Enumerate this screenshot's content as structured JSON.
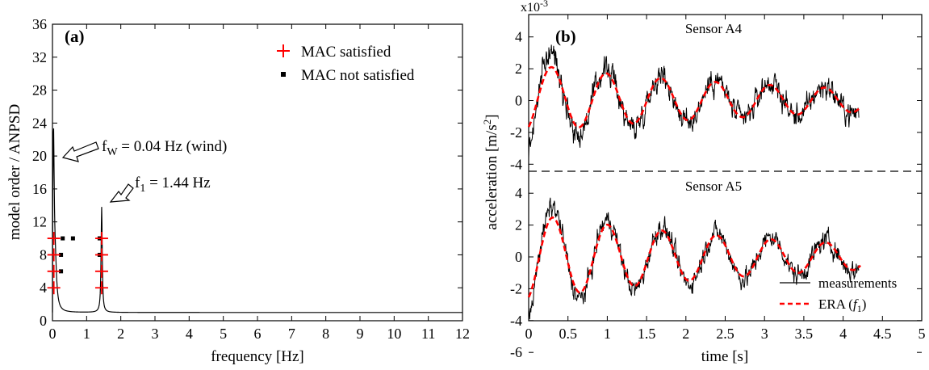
{
  "colors": {
    "axis": "#000000",
    "marker_red": "#ff0000",
    "era_red": "#ff0000",
    "trace": "#000000"
  },
  "chart_data": [
    {
      "type": "scatter",
      "panel_label": "(a)",
      "xlabel": "frequency [Hz]",
      "ylabel": "model order / ANPSD",
      "xlim": [
        0,
        12
      ],
      "ylim": [
        0,
        36
      ],
      "xticks": [
        0,
        1,
        2,
        3,
        4,
        5,
        6,
        7,
        8,
        9,
        10,
        11,
        12
      ],
      "yticks": [
        0,
        4,
        8,
        12,
        16,
        20,
        24,
        28,
        32,
        36
      ],
      "grid": false,
      "legend_position": "top-right",
      "legend": [
        {
          "label": "MAC satisfied",
          "marker": "plus",
          "color": "#ff0000"
        },
        {
          "label": "MAC not satisfied",
          "marker": "square",
          "color": "#000000"
        }
      ],
      "annotations": [
        {
          "text_main": "f",
          "text_sub": "W",
          "text_rest": " = 0.04 Hz  (wind)",
          "x": 0.04,
          "y": 20
        },
        {
          "text_main": "f",
          "text_sub": "1",
          "text_rest": " = 1.44 Hz",
          "x": 1.44,
          "y": 14
        }
      ],
      "series": [
        {
          "name": "MAC satisfied",
          "points": [
            [
              0.04,
              4
            ],
            [
              0.04,
              6
            ],
            [
              0.04,
              8
            ],
            [
              0.04,
              10
            ],
            [
              1.44,
              4
            ],
            [
              1.44,
              6
            ],
            [
              1.44,
              8
            ],
            [
              1.44,
              10
            ]
          ]
        },
        {
          "name": "MAC not satisfied",
          "points": [
            [
              0.25,
              6
            ],
            [
              0.25,
              8
            ],
            [
              0.3,
              10
            ],
            [
              0.6,
              10
            ],
            [
              1.38,
              8
            ],
            [
              1.38,
              10
            ]
          ]
        },
        {
          "name": "ANPSD",
          "line": true,
          "baseline": 1.0,
          "peaks": [
            {
              "f": 0.03,
              "amp": 21.2,
              "width": 0.025
            },
            {
              "f": 0.08,
              "amp": 6.0,
              "width": 0.05
            },
            {
              "f": 1.44,
              "amp": 13.8,
              "width": 0.02
            }
          ]
        }
      ]
    },
    {
      "type": "line",
      "panel_label": "(b)",
      "xlabel": "time [s]",
      "ylabel_main": "acceleration [m/s",
      "ylabel_sup": "2",
      "ylabel_end": "]",
      "scale_label_main": "x10",
      "scale_label_sup": "-3",
      "xlim": [
        0,
        5
      ],
      "xticks": [
        "0",
        "0.5",
        "1",
        "1.5",
        "2",
        "2.5",
        "3",
        "3.5",
        "4",
        "4.5",
        "5"
      ],
      "grid": false,
      "legend_position": "bottom-right",
      "legend": [
        {
          "label": "measurements",
          "style": "solid",
          "color": "#000000"
        },
        {
          "label_main": "ERA (",
          "label_italic": "f",
          "label_sub": "1",
          "label_end": ")",
          "style": "dashed",
          "color": "#ff0000"
        }
      ],
      "subplots": [
        {
          "title": "Sensor A4",
          "ylim": [
            -6,
            6
          ],
          "yticks_shown": [
            "4",
            "2",
            "0",
            "-2",
            "-4"
          ],
          "era": {
            "amplitude": 2.1,
            "decay": 0.28,
            "frequency": 1.44,
            "phase_deg": -62,
            "t_end": 4.22
          },
          "measurement": {
            "offset_amplitude": 1.5,
            "noise": 0.65,
            "t_end": 4.2
          }
        },
        {
          "title": "Sensor A5",
          "ylim": [
            -6,
            6
          ],
          "yticks_shown": [
            "4",
            "2",
            "0",
            "-2",
            "-4",
            "-6"
          ],
          "era": {
            "amplitude": 2.7,
            "decay": 0.32,
            "frequency": 1.44,
            "phase_deg": -70,
            "t_end": 4.22
          },
          "measurement": {
            "offset_amplitude": 0.9,
            "noise": 0.55,
            "t_end": 4.2
          }
        }
      ]
    }
  ]
}
